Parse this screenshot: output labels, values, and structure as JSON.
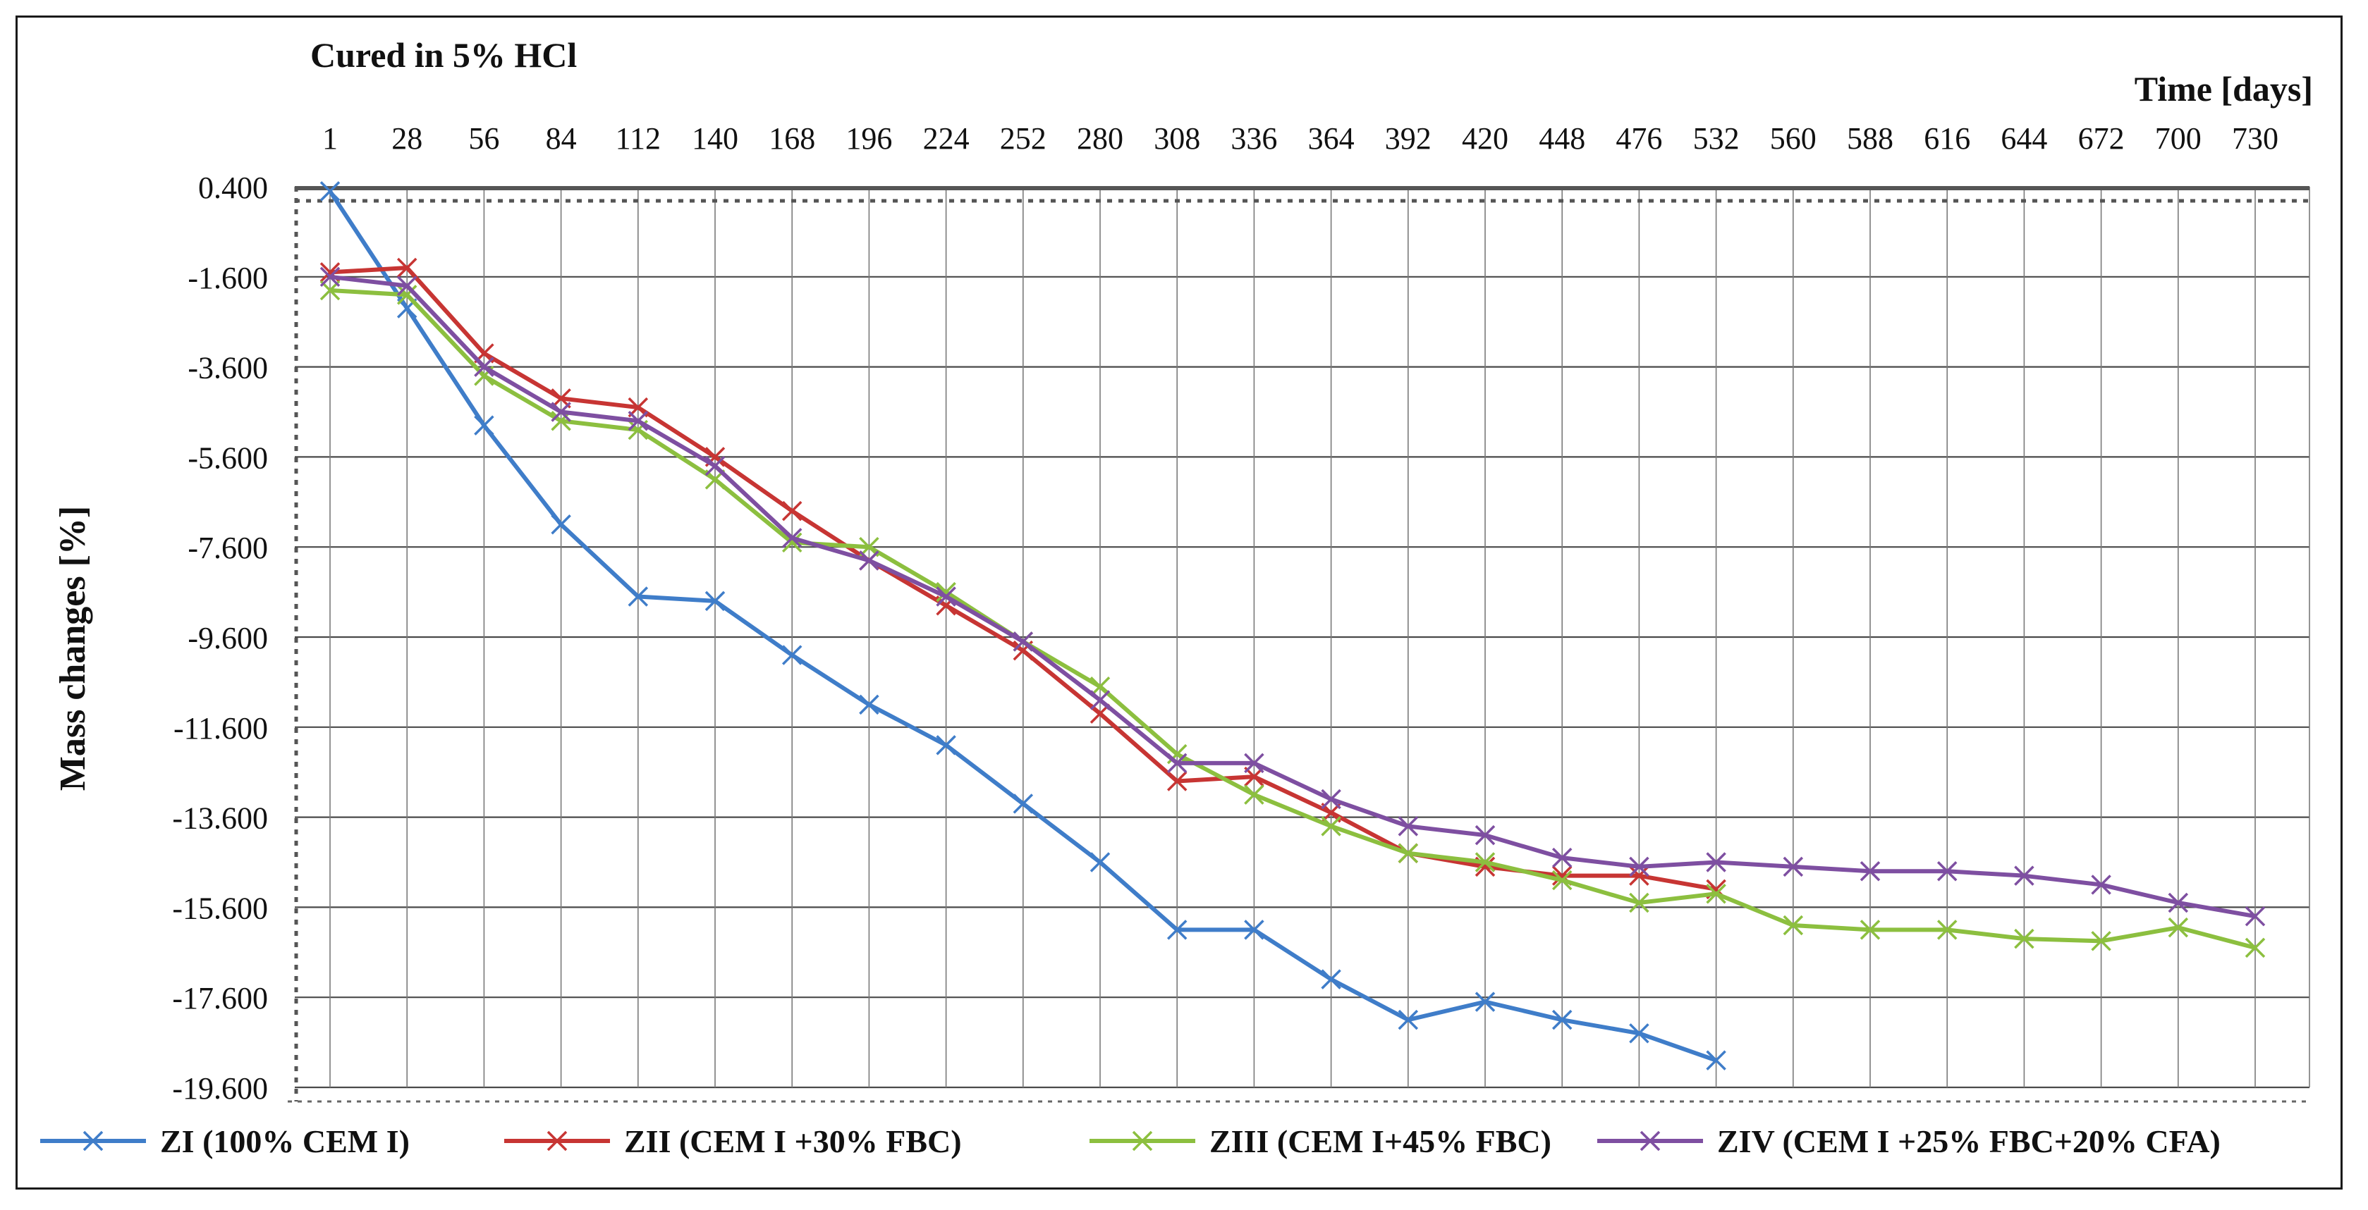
{
  "chart_data": {
    "type": "line",
    "title": "Cured in 5% HCl",
    "xlabel": "Time [days]",
    "ylabel": "Mass changes [%]",
    "categories": [
      "1",
      "28",
      "56",
      "84",
      "112",
      "140",
      "168",
      "196",
      "224",
      "252",
      "280",
      "308",
      "336",
      "364",
      "392",
      "420",
      "448",
      "476",
      "532",
      "560",
      "588",
      "616",
      "644",
      "672",
      "700",
      "730"
    ],
    "y_ticks": [
      "0.400",
      "-1.600",
      "-3.600",
      "-5.600",
      "-7.600",
      "-9.600",
      "-11.600",
      "-13.600",
      "-15.600",
      "-17.600",
      "-19.600"
    ],
    "ylim": [
      -19.6,
      0.4
    ],
    "grid": true,
    "legend_position": "bottom",
    "series": [
      {
        "name": "ZI (100% CEM I)",
        "color": "#3f7dc9",
        "values": [
          0.3,
          -2.3,
          -4.9,
          -7.1,
          -8.7,
          -8.8,
          -10.0,
          -11.1,
          -12.0,
          -13.3,
          -14.6,
          -16.1,
          -16.1,
          -17.2,
          -18.1,
          -17.7,
          -18.1,
          -18.4,
          -19.0,
          null,
          null,
          null,
          null,
          null,
          null,
          null
        ]
      },
      {
        "name": "ZII (CEM I +30% FBC)",
        "color": "#c73533",
        "values": [
          -1.5,
          -1.4,
          -3.3,
          -4.3,
          -4.5,
          -5.6,
          -6.8,
          -7.9,
          -8.9,
          -9.9,
          -11.3,
          -12.8,
          -12.7,
          -13.5,
          -14.4,
          -14.7,
          -14.9,
          -14.9,
          -15.2,
          null,
          null,
          null,
          null,
          null,
          null,
          null
        ]
      },
      {
        "name": "ZIII (CEM I+45% FBC)",
        "color": "#8cbf3f",
        "values": [
          -1.9,
          -2.0,
          -3.8,
          -4.8,
          -5.0,
          -6.1,
          -7.5,
          -7.6,
          -8.6,
          -9.7,
          -10.7,
          -12.2,
          -13.1,
          -13.8,
          -14.4,
          -14.6,
          -15.0,
          -15.5,
          -15.3,
          -16.0,
          -16.1,
          -16.1,
          -16.3,
          -16.35,
          -16.05,
          -16.5
        ]
      },
      {
        "name": "ZIV (CEM I +25% FBC+20% CFA)",
        "color": "#7e4fa1",
        "values": [
          -1.6,
          -1.8,
          -3.6,
          -4.6,
          -4.8,
          -5.8,
          -7.4,
          -7.9,
          -8.7,
          -9.7,
          -11.0,
          -12.4,
          -12.4,
          -13.2,
          -13.8,
          -14.0,
          -14.5,
          -14.7,
          -14.6,
          -14.7,
          -14.8,
          -14.8,
          -14.9,
          -15.1,
          -15.5,
          -15.8
        ]
      }
    ]
  }
}
